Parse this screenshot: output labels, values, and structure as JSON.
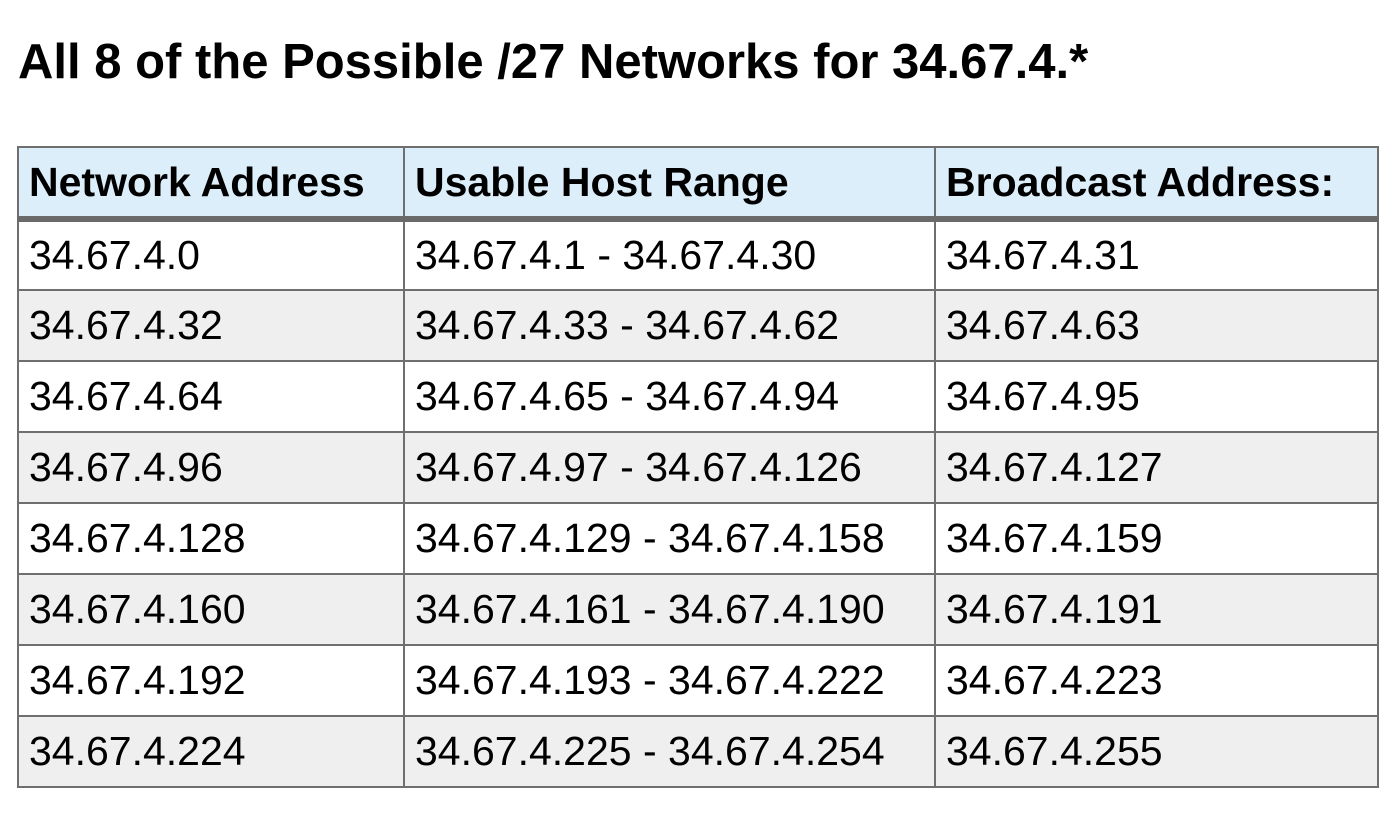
{
  "title": "All 8 of the Possible /27 Networks for 34.67.4.*",
  "table": {
    "headers": [
      "Network Address",
      "Usable Host Range",
      "Broadcast Address:"
    ],
    "rows": [
      [
        "34.67.4.0",
        "34.67.4.1 - 34.67.4.30",
        "34.67.4.31"
      ],
      [
        "34.67.4.32",
        "34.67.4.33 - 34.67.4.62",
        "34.67.4.63"
      ],
      [
        "34.67.4.64",
        "34.67.4.65 - 34.67.4.94",
        "34.67.4.95"
      ],
      [
        "34.67.4.96",
        "34.67.4.97 - 34.67.4.126",
        "34.67.4.127"
      ],
      [
        "34.67.4.128",
        "34.67.4.129 - 34.67.4.158",
        "34.67.4.159"
      ],
      [
        "34.67.4.160",
        "34.67.4.161 - 34.67.4.190",
        "34.67.4.191"
      ],
      [
        "34.67.4.192",
        "34.67.4.193 - 34.67.4.222",
        "34.67.4.223"
      ],
      [
        "34.67.4.224",
        "34.67.4.225 - 34.67.4.254",
        "34.67.4.255"
      ]
    ]
  },
  "colors": {
    "header_background": "#ddeefb",
    "even_row_background": "#efefef",
    "border": "#6f6f6f"
  }
}
